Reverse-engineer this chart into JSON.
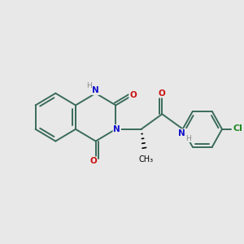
{
  "bg_color": "#e8e8e8",
  "bond_color": "#3a6b5a",
  "bond_width": 1.4,
  "atom_colors": {
    "N": "#1010cc",
    "O": "#cc1010",
    "Cl": "#228822",
    "C": "#000000",
    "H": "#888888"
  },
  "font_size": 7.5,
  "fig_size": [
    3.0,
    3.0
  ],
  "dpi": 100
}
